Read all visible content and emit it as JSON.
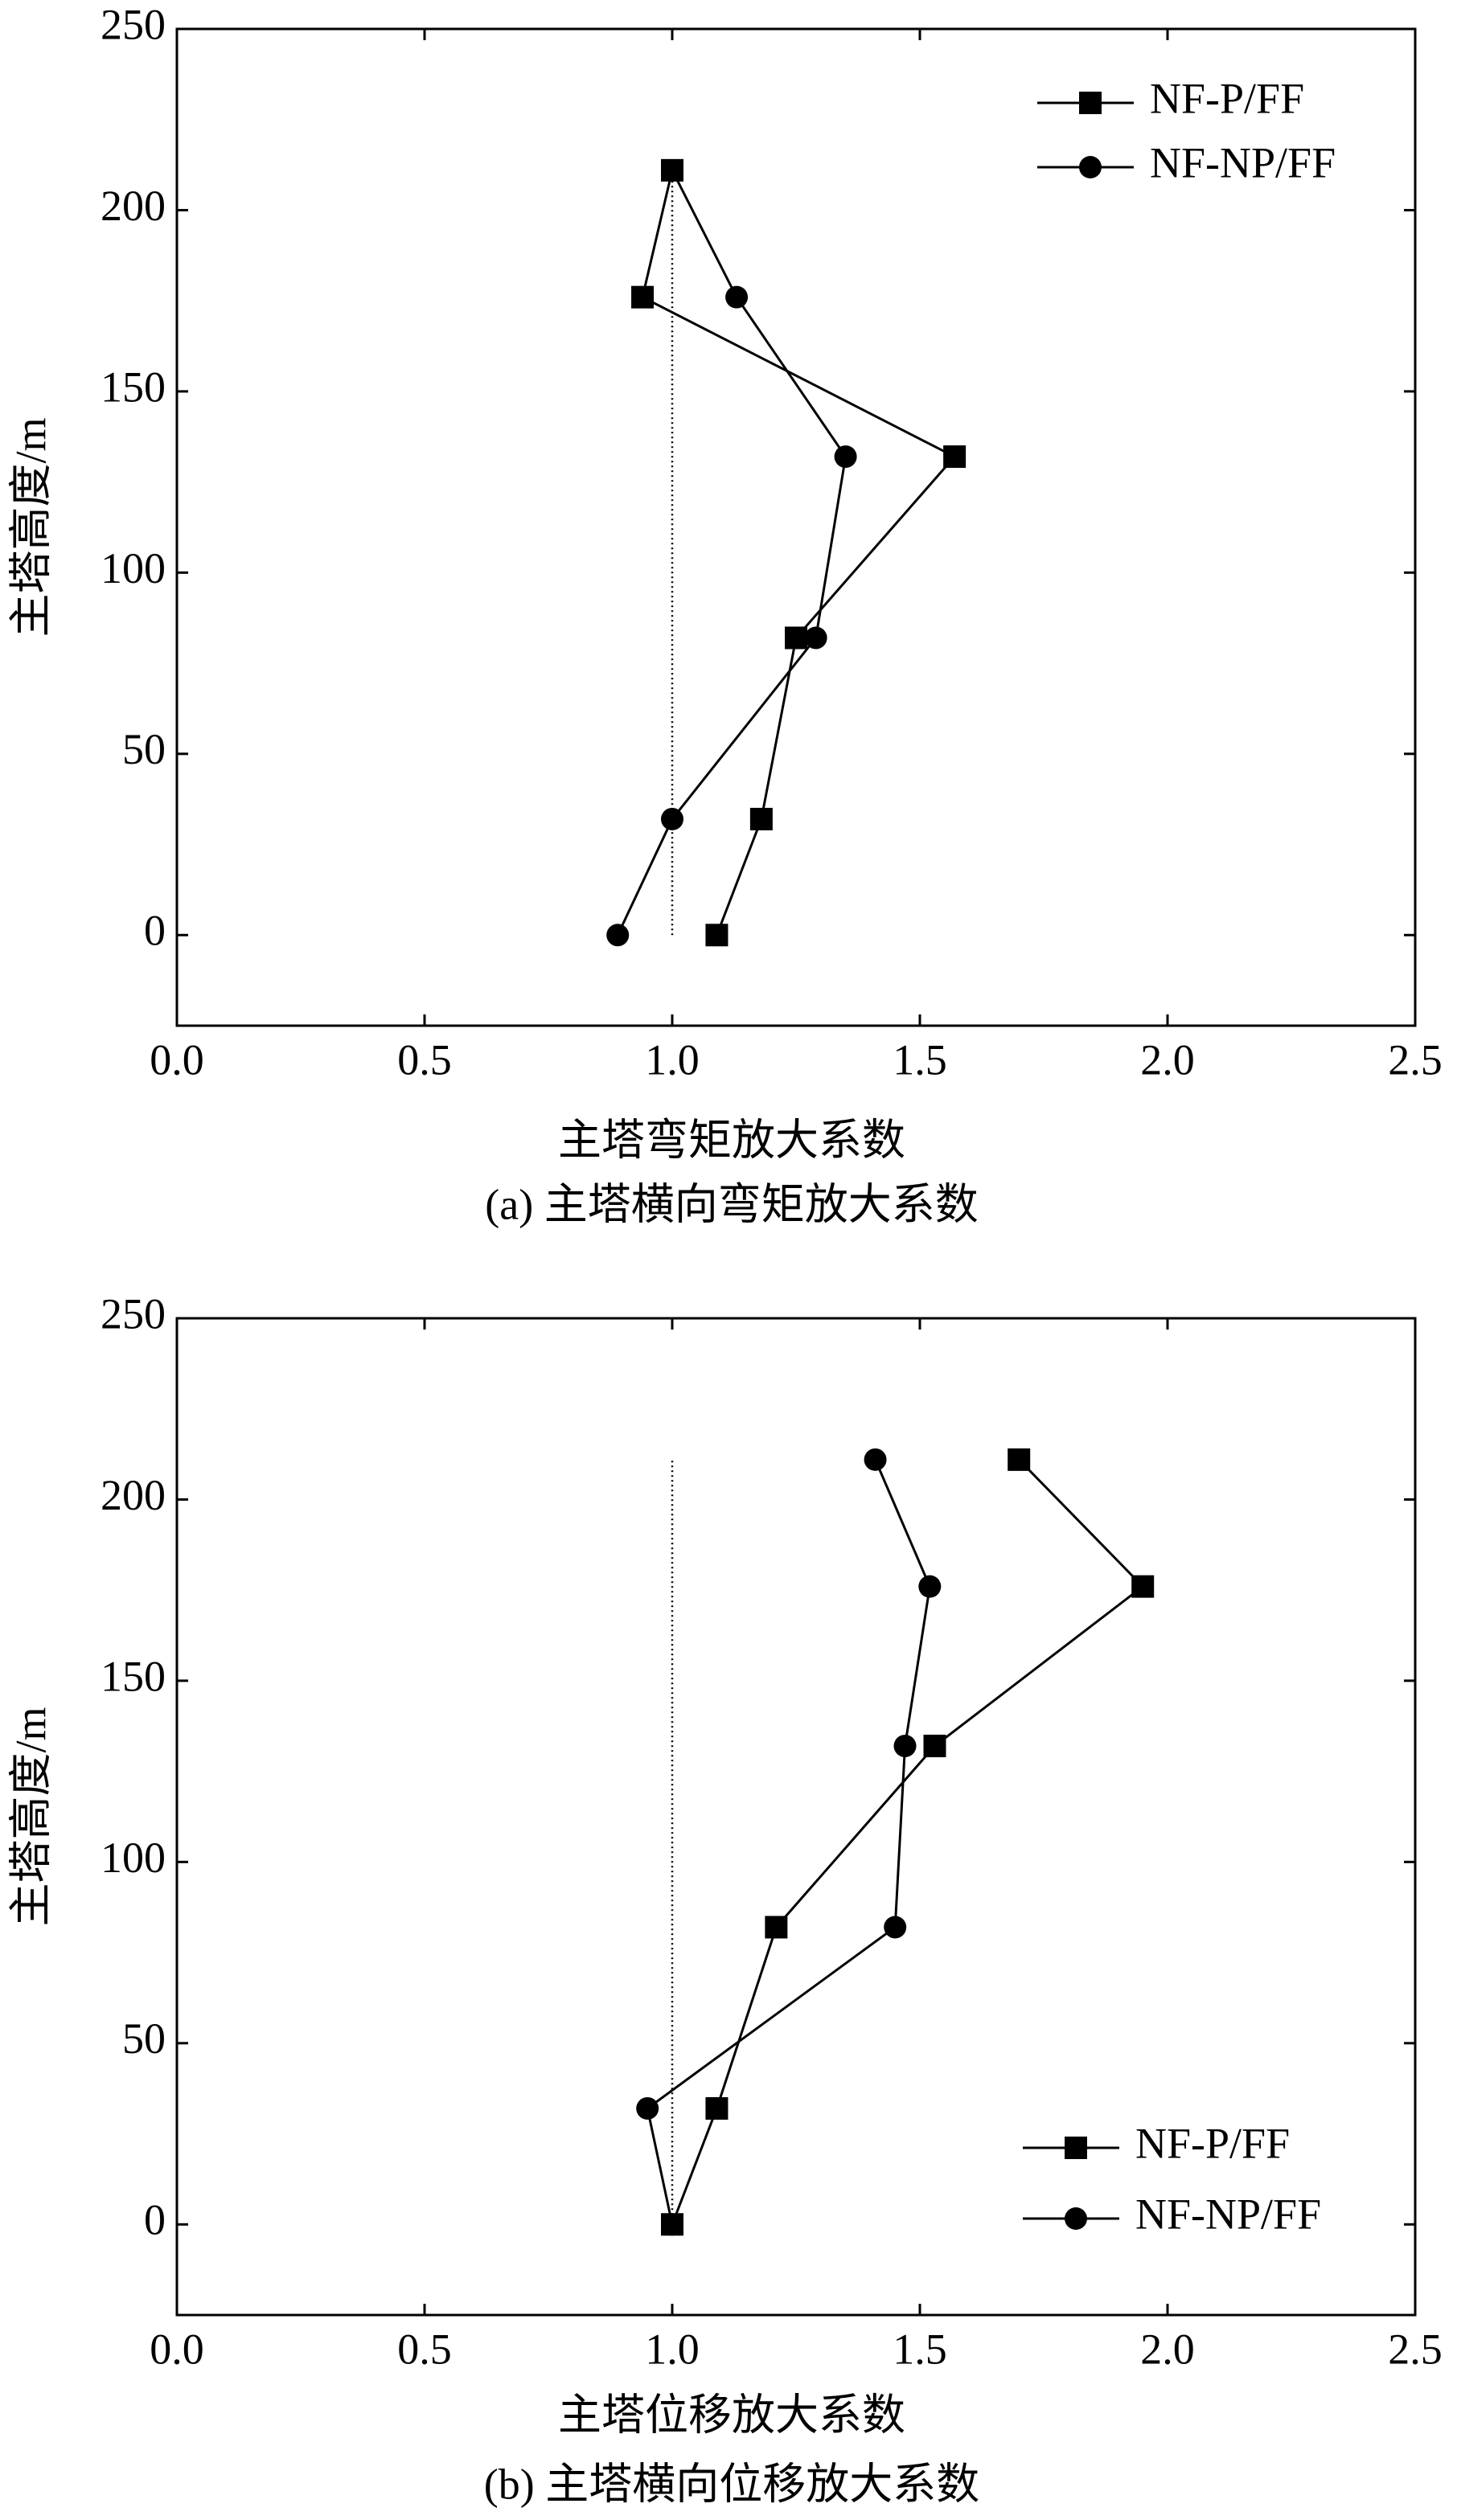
{
  "chart_data": [
    {
      "type": "line",
      "caption": "(a) 主塔横向弯矩放大系数",
      "xlabel": "主塔弯矩放大系数",
      "ylabel": "主塔高度/m",
      "y": [
        0,
        32,
        82,
        132,
        176,
        211
      ],
      "series": [
        {
          "name": "NF-P/FF",
          "color": "#000000",
          "marker": "square",
          "values": [
            1.09,
            1.18,
            1.25,
            1.57,
            0.94,
            1.0
          ]
        },
        {
          "name": "NF-NP/FF",
          "color": "#000000",
          "marker": "circle",
          "values": [
            0.89,
            1.0,
            1.29,
            1.35,
            1.13,
            1.0
          ]
        }
      ],
      "reference_line": {
        "x": 1,
        "ylim": [
          0,
          211
        ]
      },
      "xlim": [
        0,
        2.5
      ],
      "xticks": [
        {
          "value": 0,
          "label": "0.0"
        },
        0.5,
        {
          "value": 1,
          "label": "1.0"
        },
        1.5,
        {
          "value": 2,
          "label": "2.0"
        },
        2.5
      ],
      "ylim": [
        -25,
        250
      ],
      "yticks": [
        0,
        50,
        100,
        150,
        200,
        250
      ],
      "legend": "upper right",
      "grid": false
    },
    {
      "type": "line",
      "caption": "(b) 主塔横向位移放大系数",
      "xlabel": "主塔位移放大系数",
      "ylabel": "主塔高度/m",
      "y": [
        0,
        32,
        82,
        132,
        176,
        211
      ],
      "series": [
        {
          "name": "NF-P/FF",
          "color": "#000000",
          "marker": "square",
          "values": [
            1.0,
            1.09,
            1.21,
            1.53,
            1.95,
            1.7
          ]
        },
        {
          "name": "NF-NP/FF",
          "color": "#000000",
          "marker": "circle",
          "values": [
            1.0,
            0.95,
            1.45,
            1.47,
            1.52,
            1.41
          ]
        }
      ],
      "reference_line": {
        "x": 1,
        "ylim": [
          0,
          211
        ]
      },
      "xlim": [
        0,
        2.5
      ],
      "xticks": [
        {
          "value": 0,
          "label": "0.0"
        },
        0.5,
        {
          "value": 1,
          "label": "1.0"
        },
        1.5,
        {
          "value": 2,
          "label": "2.0"
        },
        2.5
      ],
      "ylim": [
        -25,
        250
      ],
      "yticks": [
        0,
        50,
        100,
        150,
        200,
        250
      ],
      "legend": "lower right",
      "grid": false
    }
  ]
}
